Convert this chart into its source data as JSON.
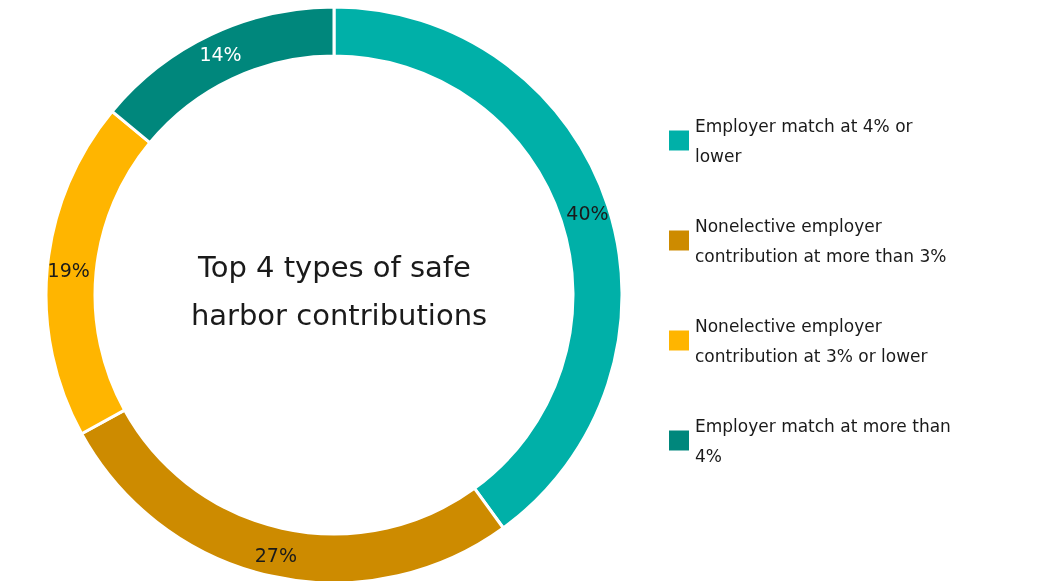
{
  "chart_data": {
    "type": "donut",
    "title": "Top 4 types of safe harbor contributions",
    "categories": [
      "Employer match at 4% or lower",
      "Nonelective employer contribution at more than 3%",
      "Nonelective employer contribution at 3% or lower",
      "Employer match at more than 4%"
    ],
    "values": [
      40,
      27,
      19,
      14
    ],
    "colors": [
      "#00b0a8",
      "#cd8b00",
      "#ffb500",
      "#00877c"
    ],
    "value_labels": [
      "40%",
      "27%",
      "19%",
      "14%"
    ],
    "legend": "right"
  }
}
